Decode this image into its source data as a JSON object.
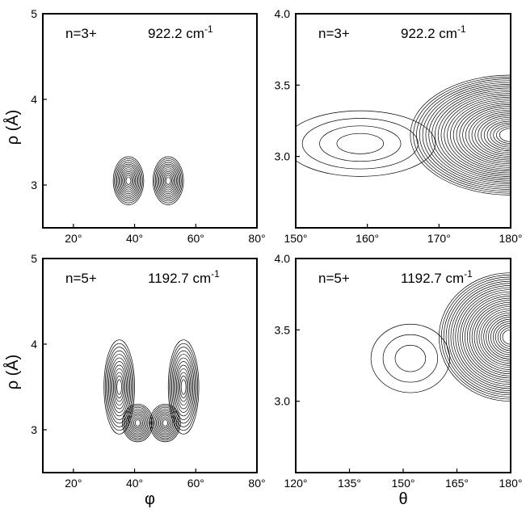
{
  "chart_data": [
    {
      "type": "contour",
      "panel": "top-left",
      "annotation_state": "n=3+",
      "annotation_energy": "922.2 cm",
      "annotation_unit_exp": "-1",
      "xlim": [
        10,
        80
      ],
      "ylim": [
        2.5,
        5
      ],
      "xticks": [
        20,
        40,
        60,
        80
      ],
      "xtick_labels": [
        "20°",
        "40°",
        "60°",
        "80°"
      ],
      "yticks": [
        3,
        4,
        5
      ],
      "ytick_labels": [
        "3",
        "4",
        "5"
      ],
      "ylabel": "ρ (Å)",
      "xlabel": "",
      "peaks": [
        {
          "x": 38,
          "y": 3.05,
          "rx": 5,
          "ry": 0.28,
          "levels": 12
        },
        {
          "x": 51,
          "y": 3.05,
          "rx": 5,
          "ry": 0.28,
          "levels": 12
        }
      ]
    },
    {
      "type": "contour",
      "panel": "top-right",
      "annotation_state": "n=3+",
      "annotation_energy": "922.2 cm",
      "annotation_unit_exp": "-1",
      "xlim": [
        150,
        180
      ],
      "ylim": [
        2.5,
        4.0
      ],
      "xticks": [
        150,
        160,
        170,
        180
      ],
      "xtick_labels": [
        "150°",
        "160°",
        "170°",
        "180°"
      ],
      "yticks": [
        3.0,
        3.5,
        4.0
      ],
      "ytick_labels": [
        "3.0",
        "3.5",
        "4.0"
      ],
      "ylabel": "",
      "xlabel": "",
      "peaks": [
        {
          "x": 159,
          "y": 3.09,
          "rx": 10.5,
          "ry": 0.23,
          "levels": 4
        },
        {
          "x": 180,
          "y": 3.15,
          "rx": 14,
          "ry": 0.42,
          "levels": 30
        }
      ]
    },
    {
      "type": "contour",
      "panel": "bottom-left",
      "annotation_state": "n=5+",
      "annotation_energy": "1192.7 cm",
      "annotation_unit_exp": "-1",
      "xlim": [
        10,
        80
      ],
      "ylim": [
        2.5,
        5
      ],
      "xticks": [
        20,
        40,
        60,
        80
      ],
      "xtick_labels": [
        "20°",
        "40°",
        "60°",
        "80°"
      ],
      "yticks": [
        3,
        4,
        5
      ],
      "ytick_labels": [
        "3",
        "4",
        "5"
      ],
      "ylabel": "ρ (Å)",
      "xlabel": "φ",
      "peaks": [
        {
          "x": 35,
          "y": 3.5,
          "rx": 5,
          "ry": 0.55,
          "levels": 12
        },
        {
          "x": 56,
          "y": 3.5,
          "rx": 5,
          "ry": 0.55,
          "levels": 12
        },
        {
          "x": 41,
          "y": 3.08,
          "rx": 5,
          "ry": 0.22,
          "levels": 11
        },
        {
          "x": 50,
          "y": 3.08,
          "rx": 5,
          "ry": 0.22,
          "levels": 11
        }
      ]
    },
    {
      "type": "contour",
      "panel": "bottom-right",
      "annotation_state": "n=5+",
      "annotation_energy": "1192.7 cm",
      "annotation_unit_exp": "-1",
      "xlim": [
        120,
        180
      ],
      "ylim": [
        2.5,
        4.0
      ],
      "xticks": [
        120,
        135,
        150,
        165,
        180
      ],
      "xtick_labels": [
        "120°",
        "135°",
        "150°",
        "165°",
        "180°"
      ],
      "yticks": [
        3.0,
        3.5,
        4.0
      ],
      "ytick_labels": [
        "3.0",
        "3.5",
        "4.0"
      ],
      "ylabel": "",
      "xlabel": "θ",
      "peaks": [
        {
          "x": 152,
          "y": 3.3,
          "rx": 11,
          "ry": 0.24,
          "levels": 3
        },
        {
          "x": 180,
          "y": 3.45,
          "rx": 20,
          "ry": 0.45,
          "levels": 28
        }
      ]
    }
  ]
}
